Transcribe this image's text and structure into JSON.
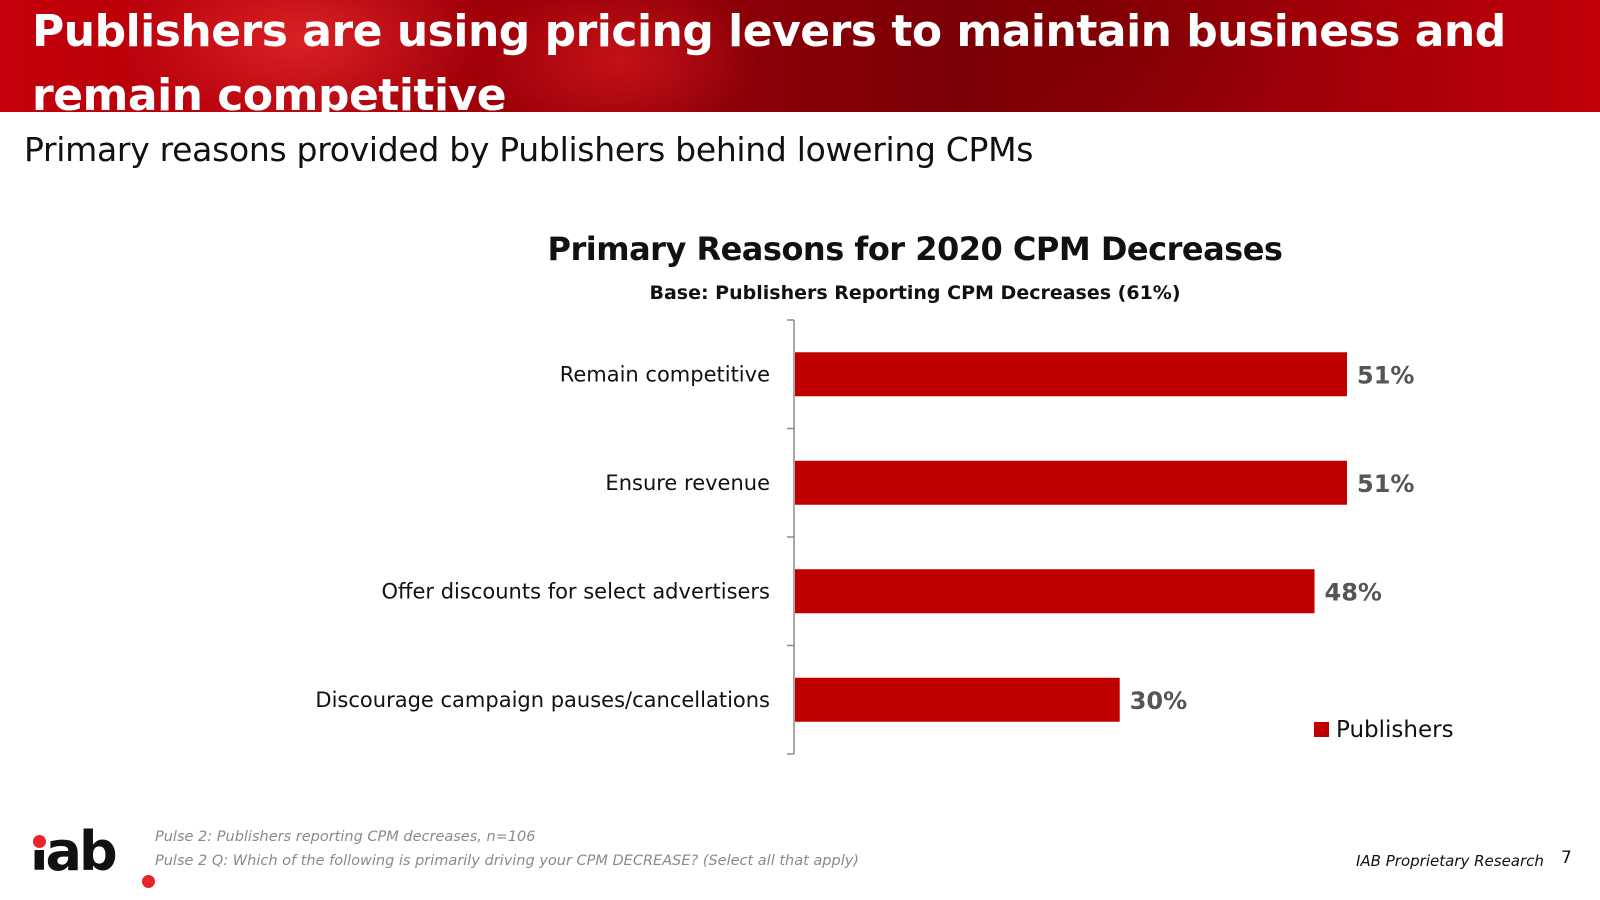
{
  "header": {
    "title": "Publishers are using pricing levers to maintain business and remain competitive"
  },
  "subtitle": "Primary reasons provided by Publishers behind lowering CPMs",
  "chart_data": {
    "type": "bar",
    "orientation": "horizontal",
    "title": "Primary Reasons for 2020 CPM Decreases",
    "subtitle": "Base:  Publishers Reporting CPM Decreases (61%)",
    "categories": [
      "Remain competitive",
      "Ensure revenue",
      "Offer discounts for select advertisers",
      "Discourage campaign pauses/cancellations"
    ],
    "series": [
      {
        "name": "Publishers",
        "values": [
          51,
          51,
          48,
          30
        ],
        "color": "#c00000"
      }
    ],
    "value_labels": [
      "51%",
      "51%",
      "48%",
      "30%"
    ],
    "value_suffix": "%",
    "xlim": [
      0,
      75
    ],
    "grid": false,
    "legend": "bottom-right"
  },
  "footer": {
    "note_1": "Pulse 2: Publishers reporting CPM decreases, n=106",
    "note_2": "Pulse 2 Q: Which of the following is primarily driving your CPM DECREASE? (Select all that apply)",
    "logo_text": "iab",
    "right_label": "IAB Proprietary Research",
    "page_number": "7"
  },
  "colors": {
    "accent": "#c00000",
    "header_red": "#a50008",
    "logo_dot": "#e8232a"
  }
}
